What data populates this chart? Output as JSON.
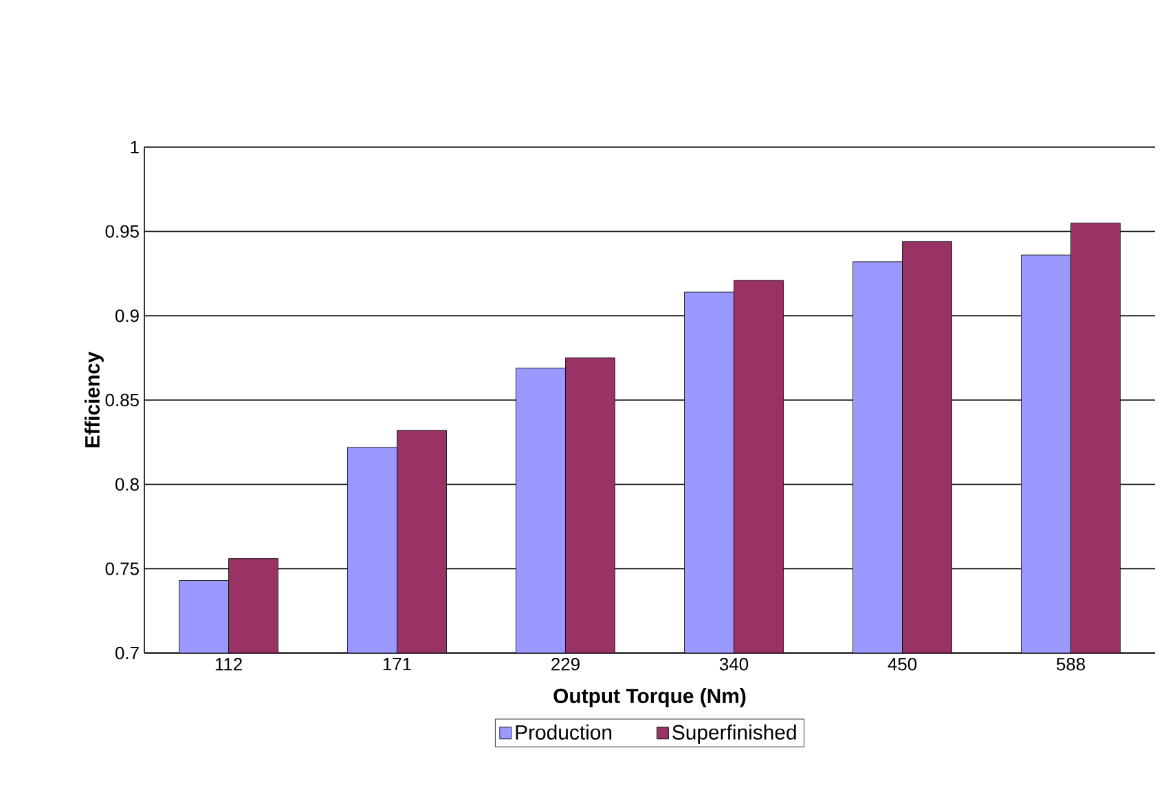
{
  "chart_data": {
    "type": "bar",
    "xlabel": "Output Torque (Nm)",
    "ylabel": "Efficiency",
    "categories": [
      "112",
      "171",
      "229",
      "340",
      "450",
      "588"
    ],
    "series": [
      {
        "name": "Production",
        "color": "#9999ff",
        "values": [
          0.743,
          0.822,
          0.869,
          0.914,
          0.932,
          0.936
        ]
      },
      {
        "name": "Superfinished",
        "color": "#993366",
        "values": [
          0.756,
          0.832,
          0.875,
          0.921,
          0.944,
          0.955
        ]
      }
    ],
    "ylim": [
      0.7,
      1
    ],
    "yticks": [
      0.7,
      0.75,
      0.8,
      0.85,
      0.9,
      0.95,
      1
    ],
    "grid": "y",
    "legend": "bottom"
  }
}
